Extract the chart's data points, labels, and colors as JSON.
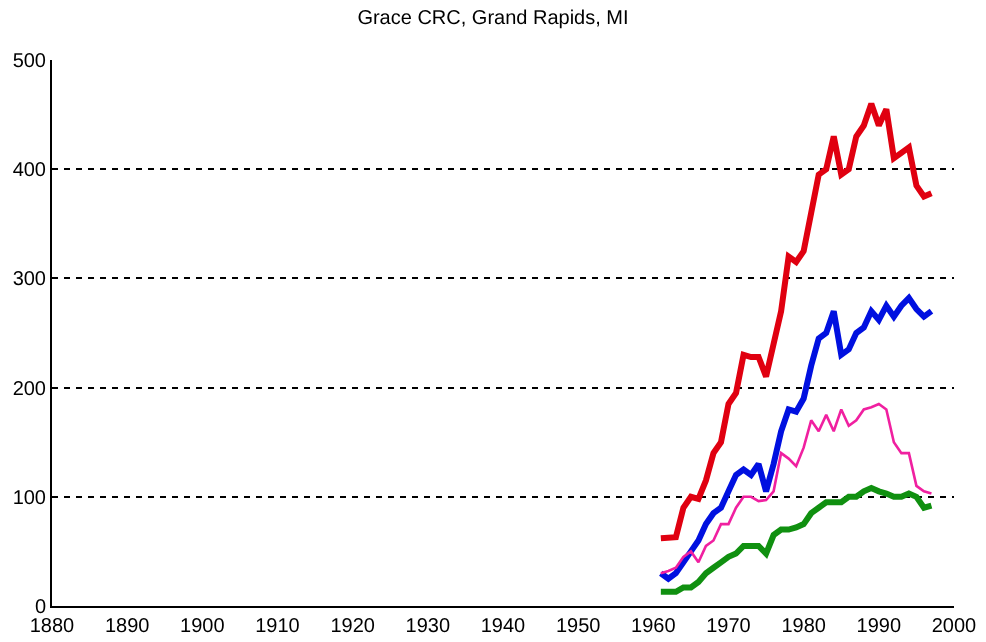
{
  "chart_data": {
    "type": "line",
    "title": "Grace CRC, Grand Rapids, MI",
    "xlim": [
      1880,
      2000
    ],
    "xticks": [
      1880,
      1890,
      1900,
      1910,
      1920,
      1930,
      1940,
      1950,
      1960,
      1970,
      1980,
      1990,
      2000
    ],
    "ylim": [
      0,
      500
    ],
    "yticks": [
      0,
      100,
      200,
      300,
      400,
      500
    ],
    "grid": "y",
    "marker": "none",
    "line_style": "solid",
    "series": [
      {
        "color": "#e00010",
        "x": [
          1961,
          1963,
          1964,
          1965,
          1966,
          1967,
          1968,
          1969,
          1970,
          1971,
          1972,
          1973,
          1974,
          1975,
          1976,
          1977,
          1978,
          1979,
          1980,
          1981,
          1982,
          1983,
          1984,
          1985,
          1986,
          1987,
          1988,
          1989,
          1990,
          1991,
          1992,
          1993,
          1994,
          1995,
          1996,
          1997
        ],
        "values": [
          62,
          63,
          90,
          100,
          98,
          115,
          140,
          150,
          185,
          195,
          230,
          228,
          228,
          210,
          240,
          270,
          320,
          315,
          325,
          360,
          395,
          400,
          430,
          395,
          400,
          430,
          440,
          460,
          440,
          455,
          410,
          415,
          420,
          385,
          375,
          378
        ]
      },
      {
        "color": "#0010e0",
        "x": [
          1961,
          1962,
          1963,
          1964,
          1965,
          1966,
          1967,
          1968,
          1969,
          1970,
          1971,
          1972,
          1973,
          1974,
          1975,
          1976,
          1977,
          1978,
          1979,
          1980,
          1981,
          1982,
          1983,
          1984,
          1985,
          1986,
          1987,
          1988,
          1989,
          1990,
          1991,
          1992,
          1993,
          1994,
          1995,
          1996,
          1997
        ],
        "values": [
          30,
          25,
          30,
          40,
          50,
          60,
          75,
          85,
          90,
          105,
          120,
          125,
          120,
          130,
          105,
          130,
          160,
          180,
          178,
          190,
          220,
          245,
          250,
          270,
          230,
          235,
          250,
          255,
          270,
          262,
          275,
          265,
          275,
          282,
          272,
          265,
          270
        ]
      },
      {
        "color": "#f020a0",
        "x": [
          1961,
          1962,
          1963,
          1964,
          1965,
          1966,
          1967,
          1968,
          1969,
          1970,
          1971,
          1972,
          1973,
          1974,
          1975,
          1976,
          1977,
          1978,
          1979,
          1980,
          1981,
          1982,
          1983,
          1984,
          1985,
          1986,
          1987,
          1988,
          1989,
          1990,
          1991,
          1992,
          1993,
          1994,
          1995,
          1996,
          1997
        ],
        "values": [
          30,
          32,
          35,
          45,
          50,
          40,
          55,
          60,
          75,
          75,
          90,
          100,
          100,
          96,
          97,
          105,
          140,
          135,
          128,
          145,
          170,
          160,
          175,
          160,
          180,
          165,
          170,
          180,
          182,
          185,
          180,
          150,
          140,
          140,
          110,
          105,
          103
        ]
      },
      {
        "color": "#109010",
        "x": [
          1961,
          1963,
          1964,
          1965,
          1966,
          1967,
          1968,
          1969,
          1970,
          1971,
          1972,
          1973,
          1974,
          1975,
          1976,
          1977,
          1978,
          1979,
          1980,
          1981,
          1982,
          1983,
          1984,
          1985,
          1986,
          1987,
          1988,
          1989,
          1990,
          1991,
          1992,
          1993,
          1994,
          1995,
          1996,
          1997
        ],
        "values": [
          13,
          13,
          17,
          17,
          22,
          30,
          35,
          40,
          45,
          48,
          55,
          55,
          55,
          48,
          65,
          70,
          70,
          72,
          75,
          85,
          90,
          95,
          95,
          95,
          100,
          100,
          105,
          108,
          105,
          103,
          100,
          100,
          103,
          100,
          90,
          92
        ]
      }
    ]
  }
}
